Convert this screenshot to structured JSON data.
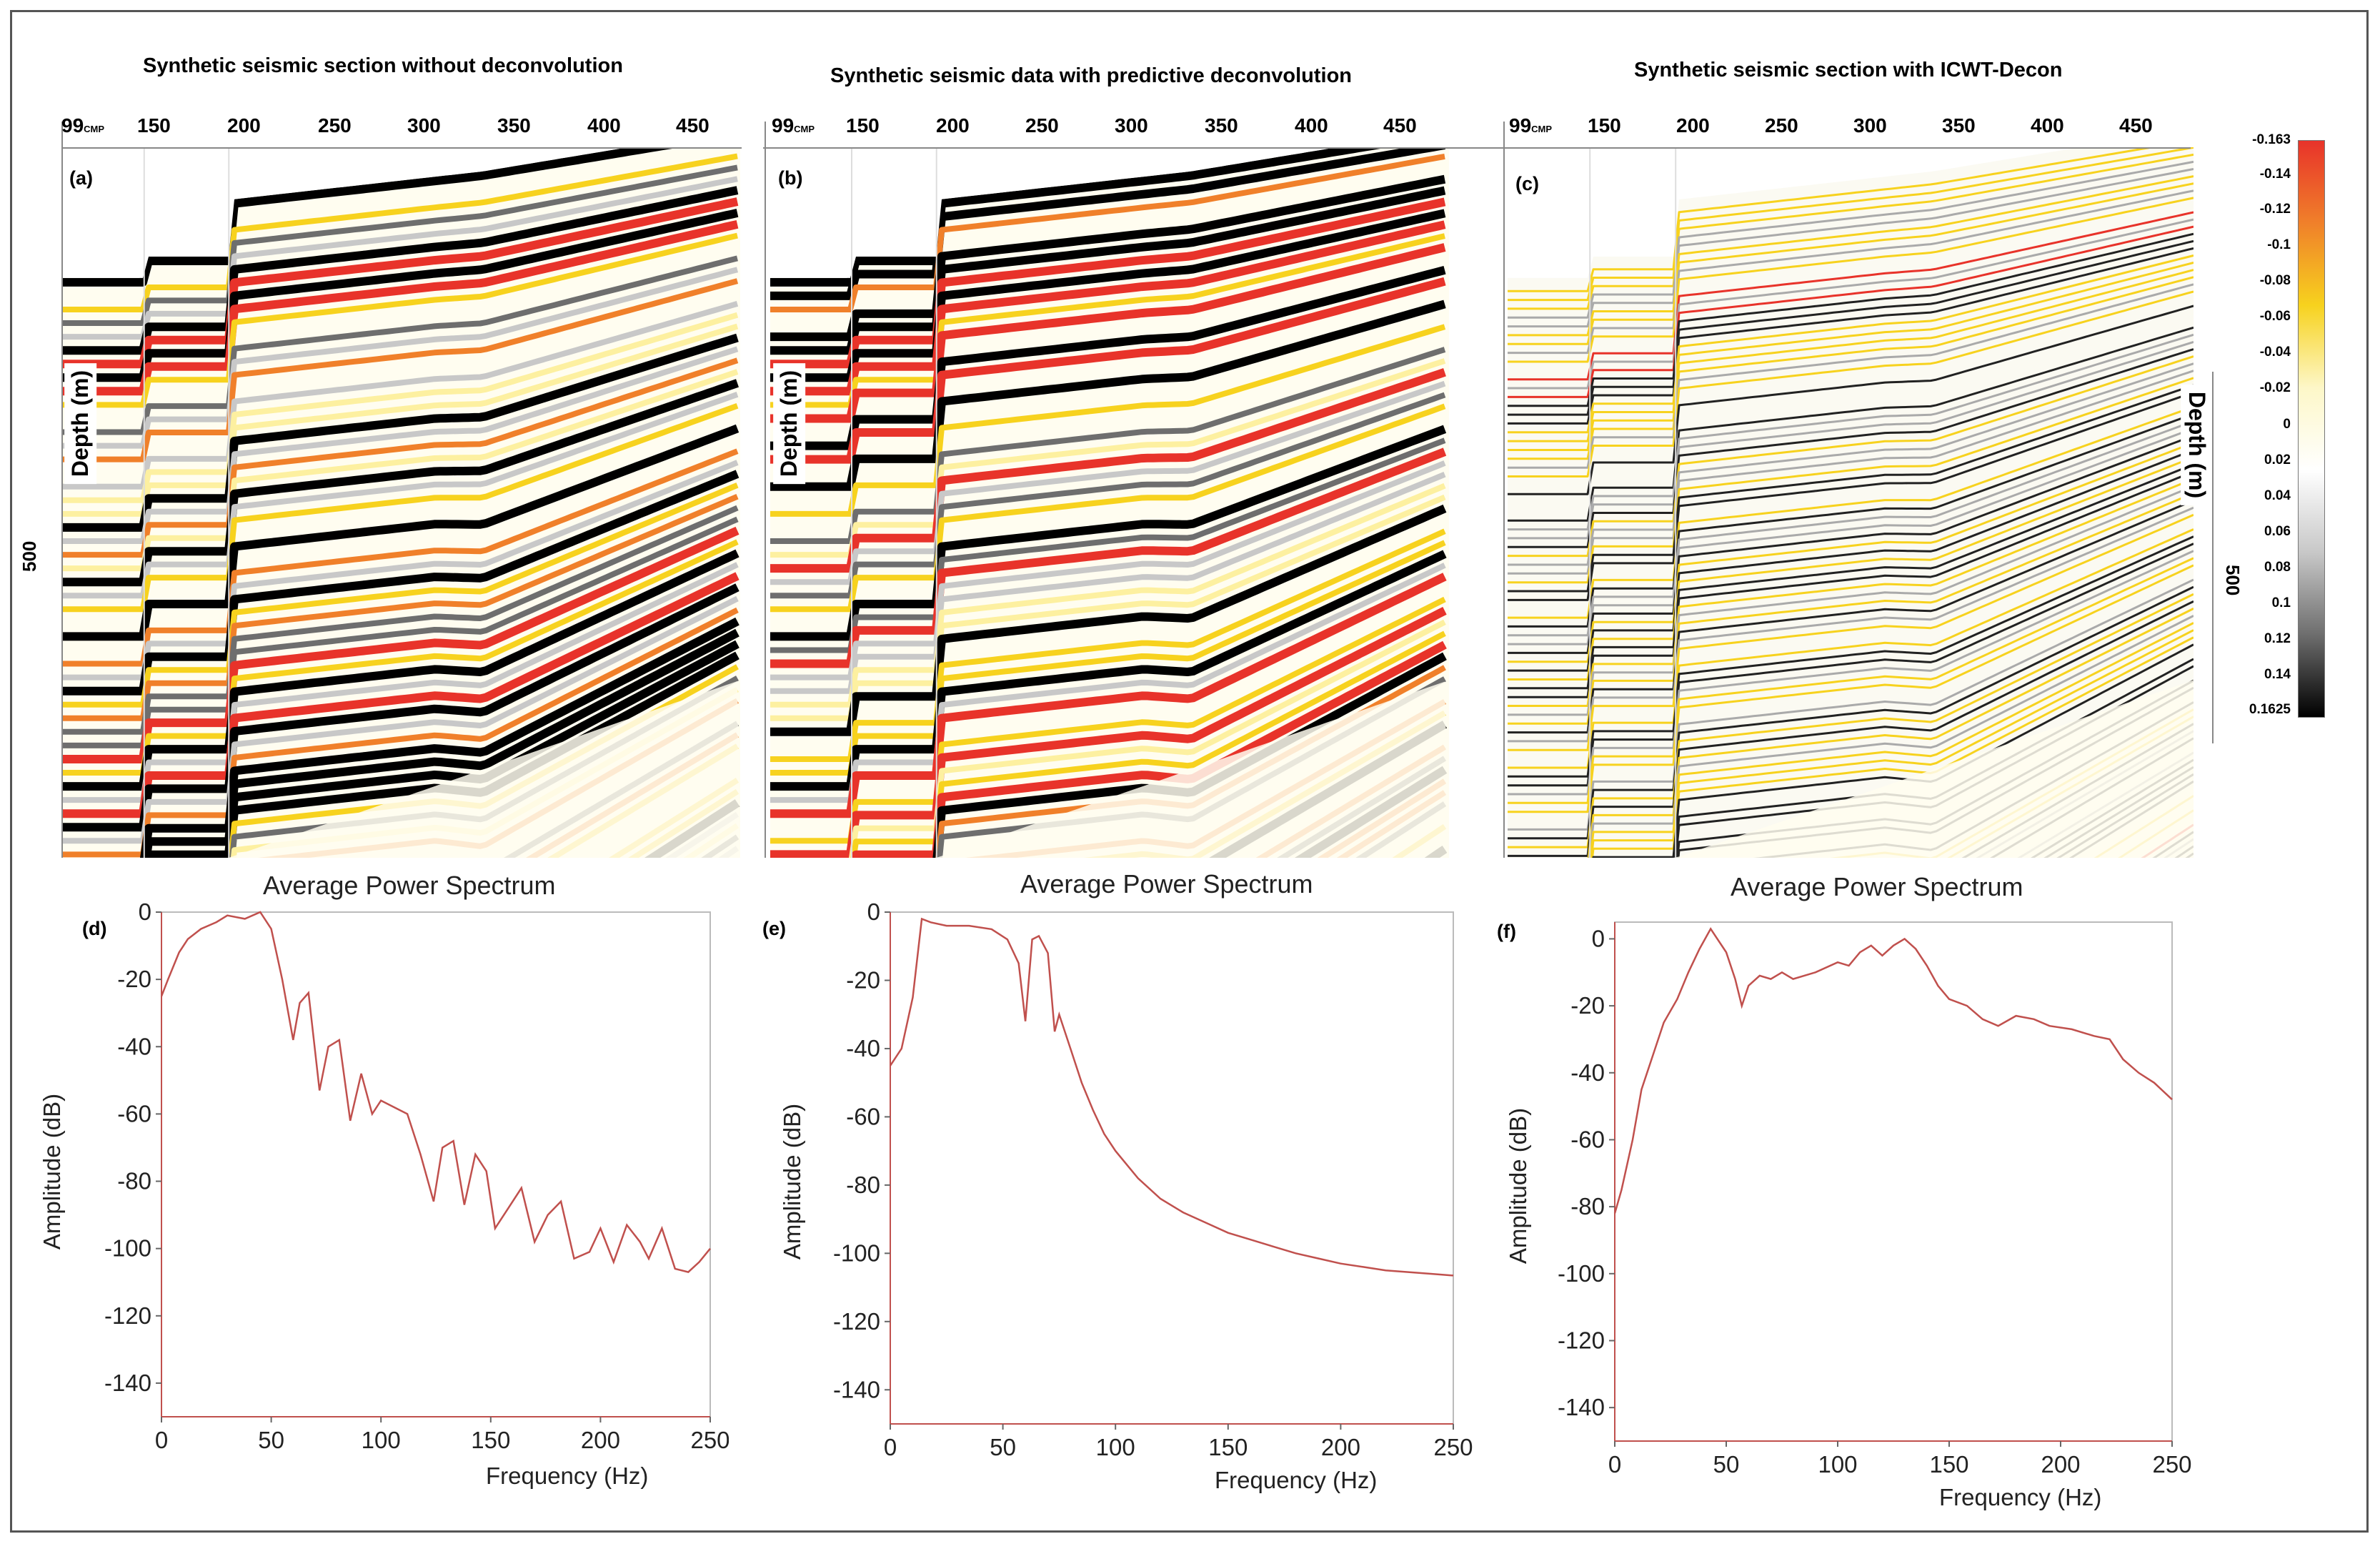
{
  "panels": [
    {
      "label": "(a)",
      "title": "Synthetic seismic section without deconvolution",
      "cmp_ticks": [
        "99",
        "150",
        "200",
        "250",
        "300",
        "350",
        "400",
        "450"
      ],
      "cmp_unit": "CMP",
      "depth_label": "Depth (m)",
      "depth_tick": "500"
    },
    {
      "label": "(b)",
      "title": "Synthetic seismic data with predictive deconvolution",
      "cmp_ticks": [
        "99",
        "150",
        "200",
        "250",
        "300",
        "350",
        "400",
        "450"
      ],
      "cmp_unit": "CMP",
      "depth_label": "Depth (m)"
    },
    {
      "label": "(c)",
      "title": "Synthetic seismic section with ICWT-Decon",
      "cmp_ticks": [
        "99",
        "150",
        "200",
        "250",
        "300",
        "350",
        "400",
        "450"
      ],
      "cmp_unit": "CMP",
      "depth_label": "Depth (m)",
      "depth_tick": "500"
    }
  ],
  "colorbar": {
    "ticks": [
      "-0.163",
      "-0.14",
      "-0.12",
      "-0.1",
      "-0.08",
      "-0.06",
      "-0.04",
      "-0.02",
      "0",
      "0.02",
      "0.04",
      "0.06",
      "0.08",
      "0.1",
      "0.12",
      "0.14",
      "0.1625"
    ],
    "colors": [
      "#e8332a",
      "#f0802a",
      "#f7d21e",
      "#fdf7c8",
      "#ffffff",
      "#c8c8c8",
      "#6e6e6e",
      "#000000"
    ]
  },
  "chart_data": [
    {
      "type": "line",
      "label": "(d)",
      "title": "Average Power Spectrum",
      "xlabel": "Frequency (Hz)",
      "ylabel": "Amplitude (dB)",
      "xlim": [
        0,
        250
      ],
      "ylim": [
        -150,
        0
      ],
      "xticks": [
        "0",
        "50",
        "100",
        "150",
        "200",
        "250"
      ],
      "yticks": [
        "0",
        "-20",
        "-40",
        "-60",
        "-80",
        "-100",
        "-120",
        "-140"
      ],
      "line_color": "#c0504d",
      "series": [
        {
          "name": "without deconvolution",
          "x": [
            0,
            3,
            8,
            12,
            18,
            25,
            30,
            38,
            45,
            50,
            55,
            60,
            63,
            67,
            72,
            76,
            81,
            86,
            91,
            96,
            100,
            106,
            112,
            118,
            124,
            128,
            133,
            138,
            143,
            148,
            152,
            158,
            164,
            170,
            176,
            182,
            188,
            195,
            200,
            206,
            212,
            218,
            222,
            228,
            234,
            240,
            245,
            250
          ],
          "y": [
            -25,
            -20,
            -12,
            -8,
            -5,
            -3,
            -1,
            -2,
            0,
            -5,
            -20,
            -38,
            -27,
            -24,
            -53,
            -40,
            -38,
            -62,
            -48,
            -60,
            -56,
            -58,
            -60,
            -72,
            -86,
            -70,
            -68,
            -87,
            -72,
            -77,
            -94,
            -88,
            -82,
            -98,
            -90,
            -86,
            -103,
            -101,
            -94,
            -104,
            -93,
            -98,
            -103,
            -94,
            -106,
            -107,
            -104,
            -100
          ]
        }
      ]
    },
    {
      "type": "line",
      "label": "(e)",
      "title": "Average Power Spectrum",
      "xlabel": "Frequency (Hz)",
      "ylabel": "Amplitude (dB)",
      "xlim": [
        0,
        250
      ],
      "ylim": [
        -150,
        0
      ],
      "xticks": [
        "0",
        "50",
        "100",
        "150",
        "200",
        "250"
      ],
      "yticks": [
        "0",
        "-20",
        "-40",
        "-60",
        "-80",
        "-100",
        "-120",
        "-140"
      ],
      "line_color": "#c0504d",
      "series": [
        {
          "name": "predictive deconvolution",
          "x": [
            0,
            5,
            10,
            14,
            18,
            25,
            35,
            45,
            52,
            57,
            60,
            63,
            66,
            70,
            73,
            75,
            80,
            85,
            90,
            95,
            100,
            110,
            120,
            130,
            140,
            150,
            160,
            170,
            180,
            190,
            200,
            210,
            220,
            230,
            240,
            250
          ],
          "y": [
            -45,
            -40,
            -25,
            -2,
            -3,
            -4,
            -4,
            -5,
            -8,
            -15,
            -32,
            -8,
            -7,
            -12,
            -35,
            -30,
            -40,
            -50,
            -58,
            -65,
            -70,
            -78,
            -84,
            -88,
            -91,
            -94,
            -96,
            -98,
            -100,
            -101.5,
            -103,
            -104,
            -105,
            -105.5,
            -106,
            -106.5
          ]
        }
      ]
    },
    {
      "type": "line",
      "label": "(f)",
      "title": "Average Power Spectrum",
      "xlabel": "Frequency (Hz)",
      "ylabel": "Amplitude (dB)",
      "xlim": [
        0,
        250
      ],
      "ylim": [
        -150,
        5
      ],
      "xticks": [
        "0",
        "50",
        "100",
        "150",
        "200",
        "250"
      ],
      "yticks": [
        "0",
        "-20",
        "-40",
        "-60",
        "-80",
        "-100",
        "-120",
        "-140"
      ],
      "line_color": "#c0504d",
      "series": [
        {
          "name": "ICWT-Decon",
          "x": [
            0,
            3,
            8,
            12,
            17,
            22,
            28,
            33,
            38,
            43,
            46,
            50,
            54,
            57,
            60,
            65,
            70,
            75,
            80,
            90,
            100,
            105,
            110,
            115,
            120,
            125,
            130,
            135,
            140,
            145,
            150,
            158,
            165,
            172,
            180,
            188,
            195,
            205,
            215,
            222,
            228,
            235,
            242,
            250
          ],
          "y": [
            -82,
            -75,
            -60,
            -45,
            -35,
            -25,
            -18,
            -10,
            -3,
            3,
            0,
            -4,
            -12,
            -20,
            -14,
            -11,
            -12,
            -10,
            -12,
            -10,
            -7,
            -8,
            -4,
            -2,
            -5,
            -2,
            0,
            -3,
            -8,
            -14,
            -18,
            -20,
            -24,
            -26,
            -23,
            -24,
            -26,
            -27,
            -29,
            -30,
            -36,
            -40,
            -43,
            -48
          ]
        }
      ]
    }
  ]
}
